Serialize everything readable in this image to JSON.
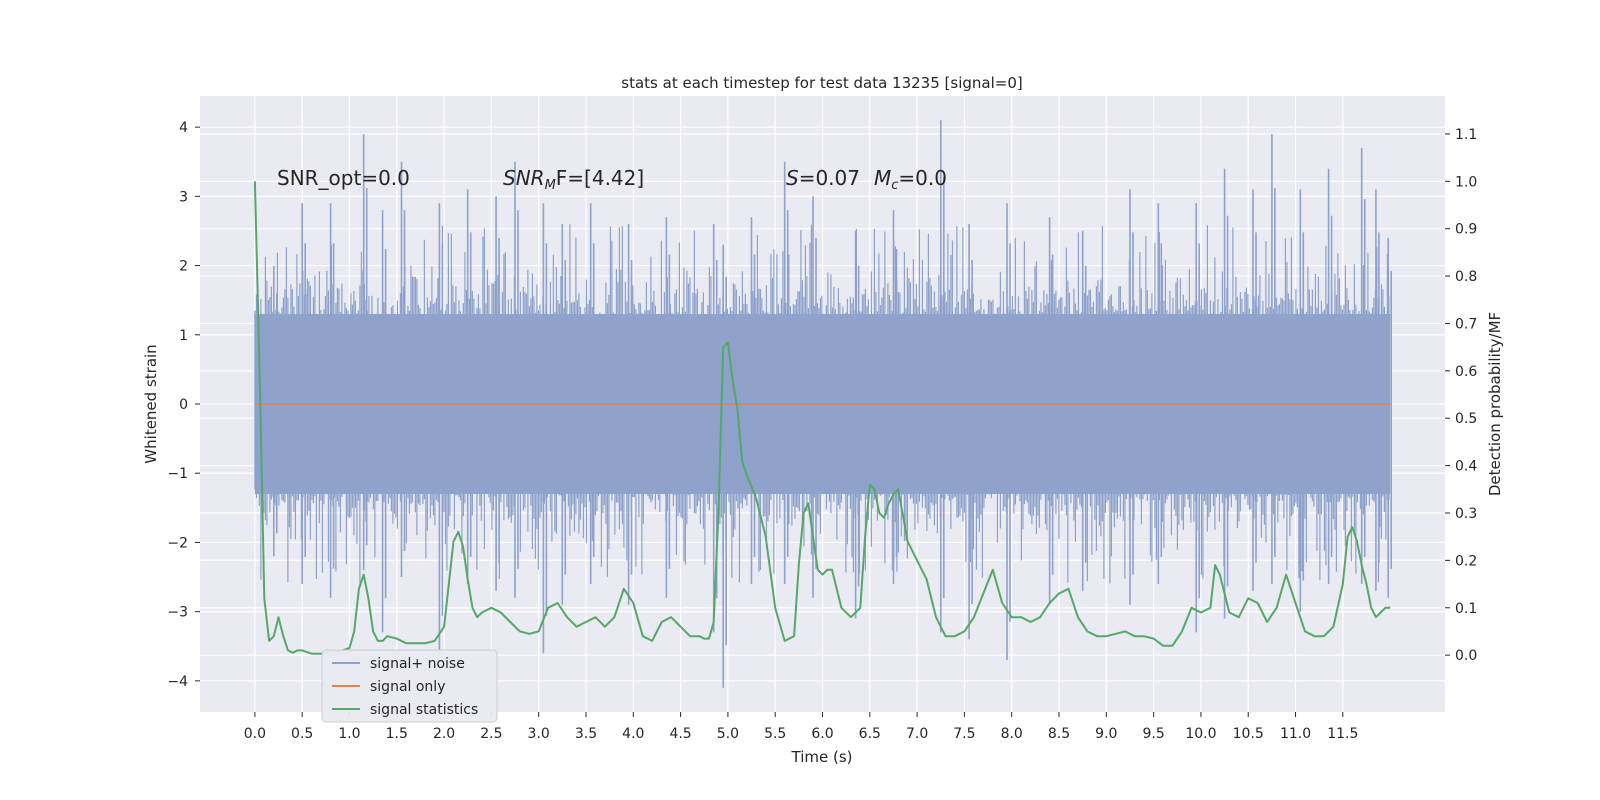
{
  "chart_data": {
    "type": "line",
    "title": "stats at each timestep for test data 13235 [signal=0]",
    "xlabel": "Time (s)",
    "ylabel": "Whitened strain",
    "y2label": "Detection probability/MF",
    "xlim": [
      -0.58,
      12.58
    ],
    "ylim": [
      -4.45,
      4.45
    ],
    "y2lim": [
      -0.12,
      1.18
    ],
    "x_ticks": [
      0.0,
      0.5,
      1.0,
      1.5,
      2.0,
      2.5,
      3.0,
      3.5,
      4.0,
      4.5,
      5.0,
      5.5,
      6.0,
      6.5,
      7.0,
      7.5,
      8.0,
      8.5,
      9.0,
      9.5,
      10.0,
      10.5,
      11.0,
      11.5
    ],
    "x_tick_labels": [
      "0.0",
      "0.5",
      "1.0",
      "1.5",
      "2.0",
      "2.5",
      "3.0",
      "3.5",
      "4.0",
      "4.5",
      "5.0",
      "5.5",
      "6.0",
      "6.5",
      "7.0",
      "7.5",
      "8.0",
      "8.5",
      "9.0",
      "9.5",
      "10.0",
      "10.5",
      "11.0",
      "11.5"
    ],
    "y_ticks": [
      -4,
      -3,
      -2,
      -1,
      0,
      1,
      2,
      3,
      4
    ],
    "y_tick_labels": [
      "−4",
      "−3",
      "−2",
      "−1",
      "0",
      "1",
      "2",
      "3",
      "4"
    ],
    "y2_ticks": [
      0.0,
      0.1,
      0.2,
      0.3,
      0.4,
      0.5,
      0.6,
      0.7,
      0.8,
      0.9,
      1.0,
      1.1
    ],
    "y2_tick_labels": [
      "0.0",
      "0.1",
      "0.2",
      "0.3",
      "0.4",
      "0.5",
      "0.6",
      "0.7",
      "0.8",
      "0.9",
      "1.0",
      "1.1"
    ],
    "grid": true,
    "legend_position": "lower-left",
    "annotations": {
      "snr_opt": "SNR_opt=0.0",
      "snr_mf_base": "SNR",
      "snr_mf_sub": "M",
      "snr_mf_rest": "F=[4.42]",
      "s_sym": "S",
      "s_val": "=0.07",
      "mc_sym": "M",
      "mc_sub": "c",
      "mc_val": "=0.0"
    },
    "series": [
      {
        "name": "signal+ noise",
        "color": "#8ea2cc",
        "envelope_description_values": {
          "x_start": 0.0,
          "x_end": 12.0,
          "typical_band": [
            -1.3,
            1.3
          ],
          "spikes": [
            [
              0.2,
              2.0,
              -2.2
            ],
            [
              0.5,
              2.9,
              -2.6
            ],
            [
              0.8,
              2.9,
              -2.8
            ],
            [
              1.15,
              3.9,
              -2.4
            ],
            [
              1.35,
              2.8,
              -3.3
            ],
            [
              1.55,
              3.5,
              -2.5
            ],
            [
              1.95,
              2.9,
              -3.6
            ],
            [
              2.25,
              3.1,
              -2.6
            ],
            [
              2.55,
              3.0,
              -2.7
            ],
            [
              2.75,
              3.5,
              -2.8
            ],
            [
              3.05,
              2.9,
              -3.6
            ],
            [
              3.25,
              2.6,
              -2.9
            ],
            [
              3.55,
              2.9,
              -2.6
            ],
            [
              3.95,
              2.6,
              -2.9
            ],
            [
              4.35,
              2.7,
              -2.8
            ],
            [
              4.85,
              2.6,
              -3.3
            ],
            [
              4.95,
              2.3,
              -4.1
            ],
            [
              5.25,
              2.7,
              -2.6
            ],
            [
              5.6,
              3.5,
              -2.6
            ],
            [
              5.9,
              3.0,
              -2.8
            ],
            [
              6.35,
              2.5,
              -3.1
            ],
            [
              6.75,
              2.8,
              -2.6
            ],
            [
              7.25,
              4.1,
              -3.3
            ],
            [
              7.55,
              2.6,
              -3.4
            ],
            [
              7.95,
              2.9,
              -3.7
            ],
            [
              8.4,
              2.7,
              -2.9
            ],
            [
              8.75,
              2.5,
              -2.7
            ],
            [
              9.25,
              3.1,
              -2.9
            ],
            [
              9.55,
              2.9,
              -2.6
            ],
            [
              9.95,
              2.9,
              -3.3
            ],
            [
              10.25,
              3.4,
              -3.1
            ],
            [
              10.55,
              3.1,
              -2.7
            ],
            [
              10.75,
              3.9,
              -2.6
            ],
            [
              11.05,
              3.1,
              -3.0
            ],
            [
              11.35,
              3.4,
              -2.6
            ],
            [
              11.7,
              3.7,
              -2.6
            ],
            [
              11.85,
              3.1,
              -2.7
            ],
            [
              11.98,
              2.4,
              -2.8
            ]
          ]
        }
      },
      {
        "name": "signal only",
        "color": "#dd8452",
        "x": [
          0.0,
          12.0
        ],
        "y": [
          0.0,
          0.0
        ]
      },
      {
        "name": "signal statistics",
        "color": "#55a868",
        "axis": "right",
        "x": [
          0.0,
          0.05,
          0.1,
          0.15,
          0.2,
          0.25,
          0.3,
          0.35,
          0.4,
          0.45,
          0.5,
          0.6,
          0.7,
          0.8,
          0.9,
          1.0,
          1.05,
          1.1,
          1.15,
          1.2,
          1.25,
          1.3,
          1.35,
          1.4,
          1.5,
          1.6,
          1.7,
          1.8,
          1.9,
          2.0,
          2.05,
          2.1,
          2.15,
          2.2,
          2.25,
          2.3,
          2.35,
          2.4,
          2.5,
          2.6,
          2.7,
          2.8,
          2.9,
          3.0,
          3.1,
          3.2,
          3.3,
          3.4,
          3.5,
          3.6,
          3.7,
          3.8,
          3.9,
          4.0,
          4.1,
          4.2,
          4.3,
          4.4,
          4.5,
          4.6,
          4.7,
          4.75,
          4.8,
          4.85,
          4.9,
          4.95,
          5.0,
          5.05,
          5.1,
          5.15,
          5.2,
          5.3,
          5.4,
          5.5,
          5.6,
          5.7,
          5.75,
          5.8,
          5.85,
          5.9,
          5.95,
          6.0,
          6.05,
          6.1,
          6.2,
          6.3,
          6.4,
          6.45,
          6.5,
          6.55,
          6.6,
          6.65,
          6.7,
          6.75,
          6.8,
          6.9,
          7.0,
          7.1,
          7.2,
          7.3,
          7.4,
          7.5,
          7.6,
          7.7,
          7.8,
          7.9,
          8.0,
          8.1,
          8.2,
          8.3,
          8.4,
          8.5,
          8.6,
          8.7,
          8.8,
          8.9,
          9.0,
          9.1,
          9.2,
          9.3,
          9.4,
          9.5,
          9.6,
          9.7,
          9.8,
          9.9,
          10.0,
          10.1,
          10.15,
          10.2,
          10.25,
          10.3,
          10.4,
          10.5,
          10.6,
          10.7,
          10.8,
          10.9,
          11.0,
          11.1,
          11.2,
          11.3,
          11.4,
          11.5,
          11.55,
          11.6,
          11.65,
          11.7,
          11.75,
          11.8,
          11.85,
          11.9,
          11.95,
          12.0
        ],
        "y": [
          1.0,
          0.6,
          0.12,
          0.03,
          0.04,
          0.08,
          0.04,
          0.01,
          0.005,
          0.01,
          0.01,
          0.003,
          0.003,
          0.008,
          0.008,
          0.015,
          0.05,
          0.14,
          0.17,
          0.12,
          0.05,
          0.03,
          0.03,
          0.04,
          0.035,
          0.025,
          0.025,
          0.025,
          0.03,
          0.06,
          0.15,
          0.24,
          0.26,
          0.23,
          0.16,
          0.1,
          0.08,
          0.09,
          0.1,
          0.09,
          0.07,
          0.05,
          0.045,
          0.05,
          0.1,
          0.11,
          0.08,
          0.06,
          0.07,
          0.08,
          0.06,
          0.08,
          0.14,
          0.11,
          0.04,
          0.03,
          0.07,
          0.08,
          0.06,
          0.04,
          0.04,
          0.035,
          0.035,
          0.07,
          0.3,
          0.65,
          0.66,
          0.58,
          0.52,
          0.41,
          0.38,
          0.33,
          0.25,
          0.1,
          0.03,
          0.04,
          0.19,
          0.3,
          0.32,
          0.25,
          0.18,
          0.17,
          0.18,
          0.18,
          0.1,
          0.08,
          0.1,
          0.25,
          0.36,
          0.35,
          0.3,
          0.29,
          0.32,
          0.34,
          0.35,
          0.24,
          0.2,
          0.16,
          0.08,
          0.04,
          0.04,
          0.05,
          0.08,
          0.13,
          0.18,
          0.11,
          0.08,
          0.08,
          0.07,
          0.08,
          0.11,
          0.13,
          0.14,
          0.08,
          0.05,
          0.04,
          0.04,
          0.045,
          0.05,
          0.04,
          0.04,
          0.035,
          0.02,
          0.02,
          0.05,
          0.1,
          0.09,
          0.1,
          0.19,
          0.17,
          0.13,
          0.09,
          0.08,
          0.12,
          0.11,
          0.07,
          0.1,
          0.17,
          0.11,
          0.05,
          0.04,
          0.04,
          0.06,
          0.15,
          0.25,
          0.27,
          0.24,
          0.19,
          0.15,
          0.1,
          0.08,
          0.09,
          0.1,
          0.1
        ]
      }
    ]
  }
}
